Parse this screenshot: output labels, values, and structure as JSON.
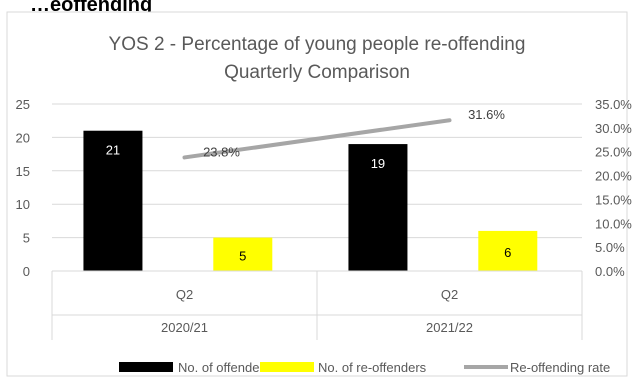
{
  "chart_data": {
    "type": "bar",
    "title": "YOS 2 - Percentage of young people re-offending",
    "subtitle": "Quarterly Comparison",
    "clipped_header_text": "…eoffending",
    "categories": [
      {
        "quarter": "Q2",
        "year": "2020/21"
      },
      {
        "quarter": "Q2",
        "year": "2021/22"
      }
    ],
    "series": [
      {
        "name": "No. of offenders",
        "kind": "bar",
        "axis": "left",
        "color": "#000000",
        "label_color": "#ffffff",
        "values": [
          21,
          19
        ]
      },
      {
        "name": "No. of re-offenders",
        "kind": "bar",
        "axis": "left",
        "color": "#ffff00",
        "label_color": "#000000",
        "values": [
          5,
          6
        ]
      },
      {
        "name": "Re-offending rate",
        "kind": "line",
        "axis": "right",
        "color": "#a6a6a6",
        "values": [
          23.8,
          31.6
        ],
        "labels": [
          "23.8%",
          "31.6%"
        ]
      }
    ],
    "y_left": {
      "min": 0,
      "max": 25,
      "ticks": [
        "0",
        "5",
        "10",
        "15",
        "20",
        "25"
      ]
    },
    "y_right": {
      "min": 0,
      "max": 35,
      "ticks": [
        "0.0%",
        "5.0%",
        "10.0%",
        "15.0%",
        "20.0%",
        "25.0%",
        "30.0%",
        "35.0%"
      ]
    },
    "grid": true,
    "legend_position": "bottom"
  }
}
